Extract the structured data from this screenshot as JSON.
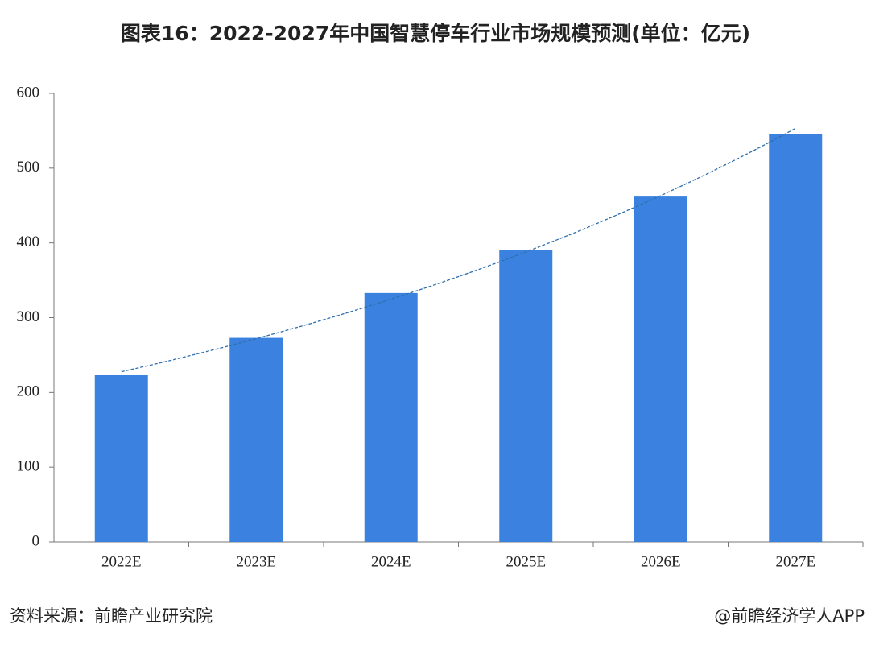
{
  "chart_data": {
    "type": "bar",
    "title": "图表16：2022-2027年中国智慧停车行业市场规模预测(单位：亿元)",
    "categories": [
      "2022E",
      "2023E",
      "2024E",
      "2025E",
      "2026E",
      "2027E"
    ],
    "values": [
      223,
      273,
      333,
      391,
      462,
      546
    ],
    "color": "#3b82e0",
    "ylim": [
      0,
      600
    ],
    "yticks": [
      0,
      100,
      200,
      300,
      400,
      500,
      600
    ],
    "grid": false,
    "trendline": true,
    "trendline_color": "#2f6fad",
    "source": "资料来源：前瞻产业研究院",
    "credit": "@前瞻经济学人APP"
  }
}
